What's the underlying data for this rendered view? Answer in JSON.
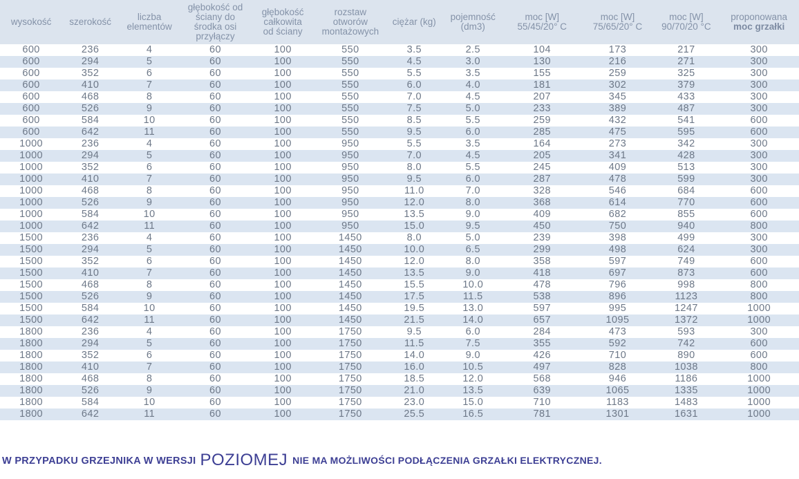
{
  "colors": {
    "header_bg": "#dce4ee",
    "stripe_bg": "#dbe5f1",
    "header_text": "#8492a8",
    "body_text": "#6d7888",
    "note_text": "#3d3f94"
  },
  "table": {
    "columns": [
      {
        "id": "wysokosc",
        "lines": [
          "wysokość"
        ],
        "width": 7.8
      },
      {
        "id": "szerokosc",
        "lines": [
          "szerokość"
        ],
        "width": 7.0
      },
      {
        "id": "liczba-elementow",
        "lines": [
          "liczba",
          "elementów"
        ],
        "width": 7.8
      },
      {
        "id": "glebokosc-od-sciany",
        "lines": [
          "głębokość od",
          "ściany do",
          "środka osi",
          "przyłączy"
        ],
        "width": 8.7
      },
      {
        "id": "glebokosc-calkowita",
        "lines": [
          "głębokość",
          "całkowita",
          "od ściany"
        ],
        "width": 8.2
      },
      {
        "id": "rozstaw-otworow",
        "lines": [
          "rozstaw",
          "otworów",
          "montażowych"
        ],
        "width": 8.7
      },
      {
        "id": "ciezar",
        "lines": [
          "ciężar (kg)"
        ],
        "width": 7.3
      },
      {
        "id": "pojemnosc",
        "lines": [
          "pojemność",
          "(dm3)"
        ],
        "width": 7.4
      },
      {
        "id": "moc-55-45-20",
        "lines": [
          "moc [W]",
          "55/45/20° C"
        ],
        "width": 9.9
      },
      {
        "id": "moc-75-65-20",
        "lines": [
          "moc [W]",
          "75/65/20° C"
        ],
        "width": 9.0
      },
      {
        "id": "moc-90-70-20",
        "lines": [
          "moc [W]",
          "90/70/20 °C"
        ],
        "width": 8.2
      },
      {
        "id": "proponowana-moc-grzalki",
        "lines": [
          "proponowana",
          "moc grzałki"
        ],
        "emphasis_line": 1,
        "width": 10.0
      }
    ],
    "rows": [
      [
        "600",
        "236",
        "4",
        "60",
        "100",
        "550",
        "3.5",
        "2.5",
        "104",
        "173",
        "217",
        "300"
      ],
      [
        "600",
        "294",
        "5",
        "60",
        "100",
        "550",
        "4.5",
        "3.0",
        "130",
        "216",
        "271",
        "300"
      ],
      [
        "600",
        "352",
        "6",
        "60",
        "100",
        "550",
        "5.5",
        "3.5",
        "155",
        "259",
        "325",
        "300"
      ],
      [
        "600",
        "410",
        "7",
        "60",
        "100",
        "550",
        "6.0",
        "4.0",
        "181",
        "302",
        "379",
        "300"
      ],
      [
        "600",
        "468",
        "8",
        "60",
        "100",
        "550",
        "7.0",
        "4.5",
        "207",
        "345",
        "433",
        "300"
      ],
      [
        "600",
        "526",
        "9",
        "60",
        "100",
        "550",
        "7.5",
        "5.0",
        "233",
        "389",
        "487",
        "300"
      ],
      [
        "600",
        "584",
        "10",
        "60",
        "100",
        "550",
        "8.5",
        "5.5",
        "259",
        "432",
        "541",
        "600"
      ],
      [
        "600",
        "642",
        "11",
        "60",
        "100",
        "550",
        "9.5",
        "6.0",
        "285",
        "475",
        "595",
        "600"
      ],
      [
        "1000",
        "236",
        "4",
        "60",
        "100",
        "950",
        "5.5",
        "3.5",
        "164",
        "273",
        "342",
        "300"
      ],
      [
        "1000",
        "294",
        "5",
        "60",
        "100",
        "950",
        "7.0",
        "4.5",
        "205",
        "341",
        "428",
        "300"
      ],
      [
        "1000",
        "352",
        "6",
        "60",
        "100",
        "950",
        "8.0",
        "5.5",
        "245",
        "409",
        "513",
        "300"
      ],
      [
        "1000",
        "410",
        "7",
        "60",
        "100",
        "950",
        "9.5",
        "6.0",
        "287",
        "478",
        "599",
        "300"
      ],
      [
        "1000",
        "468",
        "8",
        "60",
        "100",
        "950",
        "11.0",
        "7.0",
        "328",
        "546",
        "684",
        "600"
      ],
      [
        "1000",
        "526",
        "9",
        "60",
        "100",
        "950",
        "12.0",
        "8.0",
        "368",
        "614",
        "770",
        "600"
      ],
      [
        "1000",
        "584",
        "10",
        "60",
        "100",
        "950",
        "13.5",
        "9.0",
        "409",
        "682",
        "855",
        "600"
      ],
      [
        "1000",
        "642",
        "11",
        "60",
        "100",
        "950",
        "15.0",
        "9.5",
        "450",
        "750",
        "940",
        "800"
      ],
      [
        "1500",
        "236",
        "4",
        "60",
        "100",
        "1450",
        "8.0",
        "5.0",
        "239",
        "398",
        "499",
        "300"
      ],
      [
        "1500",
        "294",
        "5",
        "60",
        "100",
        "1450",
        "10.0",
        "6.5",
        "299",
        "498",
        "624",
        "300"
      ],
      [
        "1500",
        "352",
        "6",
        "60",
        "100",
        "1450",
        "12.0",
        "8.0",
        "358",
        "597",
        "749",
        "600"
      ],
      [
        "1500",
        "410",
        "7",
        "60",
        "100",
        "1450",
        "13.5",
        "9.0",
        "418",
        "697",
        "873",
        "600"
      ],
      [
        "1500",
        "468",
        "8",
        "60",
        "100",
        "1450",
        "15.5",
        "10.0",
        "478",
        "796",
        "998",
        "800"
      ],
      [
        "1500",
        "526",
        "9",
        "60",
        "100",
        "1450",
        "17.5",
        "11.5",
        "538",
        "896",
        "1123",
        "800"
      ],
      [
        "1500",
        "584",
        "10",
        "60",
        "100",
        "1450",
        "19.5",
        "13.0",
        "597",
        "995",
        "1247",
        "1000"
      ],
      [
        "1500",
        "642",
        "11",
        "60",
        "100",
        "1450",
        "21.5",
        "14.0",
        "657",
        "1095",
        "1372",
        "1000"
      ],
      [
        "1800",
        "236",
        "4",
        "60",
        "100",
        "1750",
        "9.5",
        "6.0",
        "284",
        "473",
        "593",
        "300"
      ],
      [
        "1800",
        "294",
        "5",
        "60",
        "100",
        "1750",
        "11.5",
        "7.5",
        "355",
        "592",
        "742",
        "600"
      ],
      [
        "1800",
        "352",
        "6",
        "60",
        "100",
        "1750",
        "14.0",
        "9.0",
        "426",
        "710",
        "890",
        "600"
      ],
      [
        "1800",
        "410",
        "7",
        "60",
        "100",
        "1750",
        "16.0",
        "10.5",
        "497",
        "828",
        "1038",
        "800"
      ],
      [
        "1800",
        "468",
        "8",
        "60",
        "100",
        "1750",
        "18.5",
        "12.0",
        "568",
        "946",
        "1186",
        "1000"
      ],
      [
        "1800",
        "526",
        "9",
        "60",
        "100",
        "1750",
        "21.0",
        "13.5",
        "639",
        "1065",
        "1335",
        "1000"
      ],
      [
        "1800",
        "584",
        "10",
        "60",
        "100",
        "1750",
        "23.0",
        "15.0",
        "710",
        "1183",
        "1483",
        "1000"
      ],
      [
        "1800",
        "642",
        "11",
        "60",
        "100",
        "1750",
        "25.5",
        "16.5",
        "781",
        "1301",
        "1631",
        "1000"
      ]
    ]
  },
  "note": {
    "prefix": "W PRZYPADKU GRZEJNIKA W WERSJI",
    "highlight": "POZIOMEJ",
    "suffix": "NIE MA MOŻLIWOŚCI PODŁĄCZENIA GRZAŁKI ELEKTRYCZNEJ."
  }
}
